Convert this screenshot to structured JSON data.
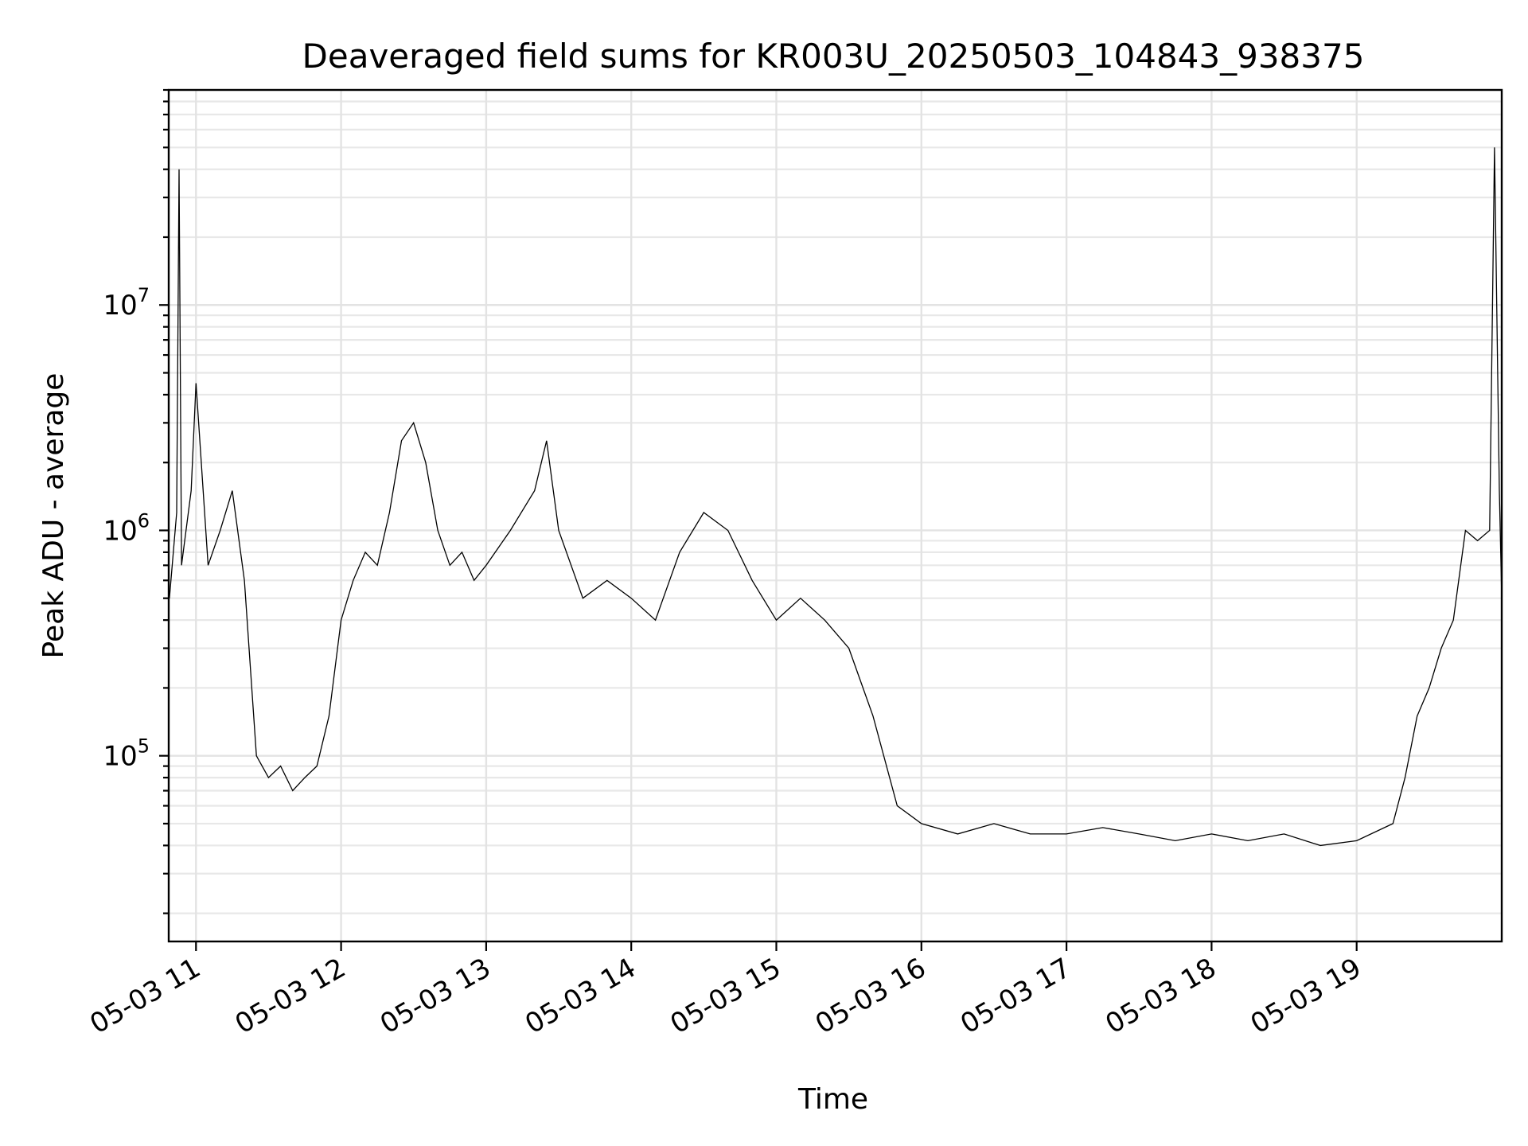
{
  "chart_data": {
    "type": "line",
    "title": "Deaveraged field sums for KR003U_20250503_104843_938375",
    "xlabel": "Time",
    "ylabel": "Peak ADU - average",
    "yscale": "log",
    "grid": true,
    "xlim": [
      "2025-05-03T10:48:43",
      "2025-05-03T20:00:00"
    ],
    "ylim": [
      15000,
      90000000
    ],
    "xticks": [
      {
        "value": "2025-05-03T11:00",
        "label": "05-03 11"
      },
      {
        "value": "2025-05-03T12:00",
        "label": "05-03 12"
      },
      {
        "value": "2025-05-03T13:00",
        "label": "05-03 13"
      },
      {
        "value": "2025-05-03T14:00",
        "label": "05-03 14"
      },
      {
        "value": "2025-05-03T15:00",
        "label": "05-03 15"
      },
      {
        "value": "2025-05-03T16:00",
        "label": "05-03 16"
      },
      {
        "value": "2025-05-03T17:00",
        "label": "05-03 17"
      },
      {
        "value": "2025-05-03T18:00",
        "label": "05-03 18"
      },
      {
        "value": "2025-05-03T19:00",
        "label": "05-03 19"
      }
    ],
    "yticks": [
      {
        "value": 100000,
        "base": "10",
        "exp": "5"
      },
      {
        "value": 1000000,
        "base": "10",
        "exp": "6"
      },
      {
        "value": 10000000,
        "base": "10",
        "exp": "7"
      }
    ],
    "series": [
      {
        "color": "#000000",
        "points": [
          [
            "2025-05-03T10:49",
            500000
          ],
          [
            "2025-05-03T10:52",
            1200000
          ],
          [
            "2025-05-03T10:53",
            40000000
          ],
          [
            "2025-05-03T10:54",
            700000
          ],
          [
            "2025-05-03T10:58",
            1500000
          ],
          [
            "2025-05-03T11:00",
            4500000
          ],
          [
            "2025-05-03T11:05",
            700000
          ],
          [
            "2025-05-03T11:10",
            1000000
          ],
          [
            "2025-05-03T11:15",
            1500000
          ],
          [
            "2025-05-03T11:20",
            600000
          ],
          [
            "2025-05-03T11:25",
            100000
          ],
          [
            "2025-05-03T11:30",
            80000
          ],
          [
            "2025-05-03T11:35",
            90000
          ],
          [
            "2025-05-03T11:40",
            70000
          ],
          [
            "2025-05-03T11:45",
            80000
          ],
          [
            "2025-05-03T11:50",
            90000
          ],
          [
            "2025-05-03T11:55",
            150000
          ],
          [
            "2025-05-03T12:00",
            400000
          ],
          [
            "2025-05-03T12:05",
            600000
          ],
          [
            "2025-05-03T12:10",
            800000
          ],
          [
            "2025-05-03T12:15",
            700000
          ],
          [
            "2025-05-03T12:20",
            1200000
          ],
          [
            "2025-05-03T12:25",
            2500000
          ],
          [
            "2025-05-03T12:30",
            3000000
          ],
          [
            "2025-05-03T12:35",
            2000000
          ],
          [
            "2025-05-03T12:40",
            1000000
          ],
          [
            "2025-05-03T12:45",
            700000
          ],
          [
            "2025-05-03T12:50",
            800000
          ],
          [
            "2025-05-03T12:55",
            600000
          ],
          [
            "2025-05-03T13:00",
            700000
          ],
          [
            "2025-05-03T13:10",
            1000000
          ],
          [
            "2025-05-03T13:20",
            1500000
          ],
          [
            "2025-05-03T13:25",
            2500000
          ],
          [
            "2025-05-03T13:30",
            1000000
          ],
          [
            "2025-05-03T13:40",
            500000
          ],
          [
            "2025-05-03T13:50",
            600000
          ],
          [
            "2025-05-03T14:00",
            500000
          ],
          [
            "2025-05-03T14:10",
            400000
          ],
          [
            "2025-05-03T14:20",
            800000
          ],
          [
            "2025-05-03T14:30",
            1200000
          ],
          [
            "2025-05-03T14:40",
            1000000
          ],
          [
            "2025-05-03T14:50",
            600000
          ],
          [
            "2025-05-03T15:00",
            400000
          ],
          [
            "2025-05-03T15:10",
            500000
          ],
          [
            "2025-05-03T15:20",
            400000
          ],
          [
            "2025-05-03T15:30",
            300000
          ],
          [
            "2025-05-03T15:40",
            150000
          ],
          [
            "2025-05-03T15:50",
            60000
          ],
          [
            "2025-05-03T16:00",
            50000
          ],
          [
            "2025-05-03T16:15",
            45000
          ],
          [
            "2025-05-03T16:30",
            50000
          ],
          [
            "2025-05-03T16:45",
            45000
          ],
          [
            "2025-05-03T17:00",
            45000
          ],
          [
            "2025-05-03T17:15",
            48000
          ],
          [
            "2025-05-03T17:30",
            45000
          ],
          [
            "2025-05-03T17:45",
            42000
          ],
          [
            "2025-05-03T18:00",
            45000
          ],
          [
            "2025-05-03T18:15",
            42000
          ],
          [
            "2025-05-03T18:30",
            45000
          ],
          [
            "2025-05-03T18:45",
            40000
          ],
          [
            "2025-05-03T19:00",
            42000
          ],
          [
            "2025-05-03T19:15",
            50000
          ],
          [
            "2025-05-03T19:20",
            80000
          ],
          [
            "2025-05-03T19:25",
            150000
          ],
          [
            "2025-05-03T19:30",
            200000
          ],
          [
            "2025-05-03T19:35",
            300000
          ],
          [
            "2025-05-03T19:40",
            400000
          ],
          [
            "2025-05-03T19:45",
            1000000
          ],
          [
            "2025-05-03T19:50",
            900000
          ],
          [
            "2025-05-03T19:55",
            1000000
          ],
          [
            "2025-05-03T19:57",
            50000000
          ],
          [
            "2025-05-03T19:59",
            1500000
          ],
          [
            "2025-05-03T20:00",
            500000
          ]
        ]
      }
    ]
  }
}
